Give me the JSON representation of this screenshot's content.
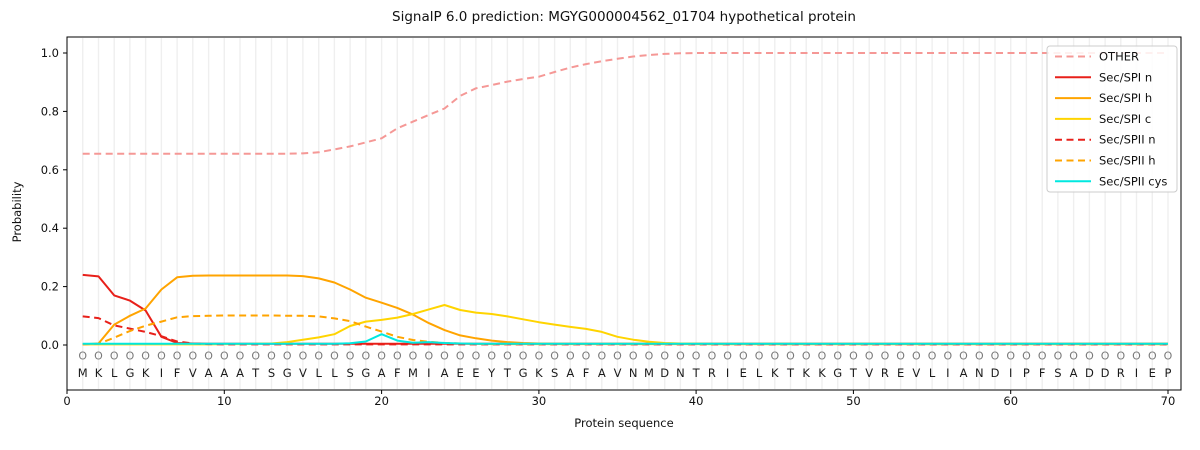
{
  "chart_data": {
    "type": "line",
    "title": "SignalP 6.0 prediction: MGYG000004562_01704 hypothetical protein",
    "xlabel": "Protein sequence",
    "ylabel": "Probability",
    "x_ticks": [
      0,
      10,
      20,
      30,
      40,
      50,
      60,
      70
    ],
    "y_ticks": [
      0.0,
      0.2,
      0.4,
      0.6,
      0.8,
      1.0
    ],
    "xlim": [
      0,
      70.8
    ],
    "ylim": [
      -0.15,
      1.05
    ],
    "grid": "vertical line at every residue position, light gray",
    "legend_position": "upper right",
    "sequence": "MKLGKIFVAAATSGVLLSGAFMIAEEYTGKSAFAVNMDNTRIELKTKKGTVREVLIANDIPFSADDRIEP",
    "position_labels": "OOOOOOOOOOOOOOOOOOOOOOOOOOOOOOOOOOOOOOOOOOOOOOOOOOOOOOOOOOOOOOOOOOOOOO",
    "colors": {
      "other": "#f59896",
      "red": "#e8201a",
      "orange": "#ffa400",
      "yellow": "#ffd400",
      "cyan": "#00e8e0",
      "grid": "#efefef",
      "frame": "#000000",
      "letter": "#1a1a1a",
      "position_label": "#7a7a7a"
    },
    "series": [
      {
        "name": "OTHER",
        "color": "#f59896",
        "dash": "dashed",
        "values": [
          0.655,
          0.655,
          0.655,
          0.655,
          0.655,
          0.655,
          0.655,
          0.655,
          0.655,
          0.655,
          0.655,
          0.655,
          0.655,
          0.655,
          0.656,
          0.66,
          0.67,
          0.68,
          0.694,
          0.708,
          0.742,
          0.765,
          0.788,
          0.81,
          0.853,
          0.879,
          0.89,
          0.902,
          0.911,
          0.919,
          0.935,
          0.95,
          0.962,
          0.972,
          0.98,
          0.988,
          0.993,
          0.997,
          0.999,
          1.0,
          1.0,
          1.0,
          1.0,
          1.0,
          1.0,
          1.0,
          1.0,
          1.0,
          1.0,
          1.0,
          1.0,
          1.0,
          1.0,
          1.0,
          1.0,
          1.0,
          1.0,
          1.0,
          1.0,
          1.0,
          1.0,
          1.0,
          1.0,
          1.0,
          1.0,
          1.0,
          1.0,
          1.0,
          1.0,
          1.0
        ]
      },
      {
        "name": "Sec/SPI n",
        "color": "#e8201a",
        "dash": "solid",
        "values": [
          0.24,
          0.235,
          0.17,
          0.152,
          0.118,
          0.028,
          0.007,
          0.005,
          0.004,
          0.004,
          0.004,
          0.004,
          0.004,
          0.004,
          0.004,
          0.004,
          0.004,
          0.004,
          0.004,
          0.004,
          0.004,
          0.004,
          0.004,
          0.004,
          0.004,
          0.004,
          0.004,
          0.004,
          0.004,
          0.004,
          0.004,
          0.004,
          0.004,
          0.004,
          0.004,
          0.004,
          0.004,
          0.004,
          0.004,
          0.004,
          0.004,
          0.004,
          0.004,
          0.004,
          0.004,
          0.004,
          0.004,
          0.004,
          0.004,
          0.004,
          0.004,
          0.004,
          0.004,
          0.004,
          0.004,
          0.004,
          0.004,
          0.004,
          0.004,
          0.004,
          0.004,
          0.004,
          0.004,
          0.004,
          0.004,
          0.004,
          0.004,
          0.004,
          0.004,
          0.004
        ]
      },
      {
        "name": "Sec/SPI h",
        "color": "#ffa400",
        "dash": "solid",
        "values": [
          0.002,
          0.005,
          0.07,
          0.1,
          0.125,
          0.19,
          0.232,
          0.237,
          0.238,
          0.238,
          0.238,
          0.238,
          0.238,
          0.238,
          0.236,
          0.228,
          0.214,
          0.19,
          0.162,
          0.145,
          0.127,
          0.104,
          0.075,
          0.051,
          0.033,
          0.023,
          0.015,
          0.01,
          0.007,
          0.005,
          0.004,
          0.004,
          0.004,
          0.004,
          0.004,
          0.004,
          0.004,
          0.004,
          0.004,
          0.004,
          0.004,
          0.004,
          0.004,
          0.004,
          0.004,
          0.004,
          0.004,
          0.004,
          0.004,
          0.004,
          0.004,
          0.004,
          0.004,
          0.004,
          0.004,
          0.004,
          0.004,
          0.004,
          0.004,
          0.004,
          0.004,
          0.004,
          0.004,
          0.004,
          0.004,
          0.004,
          0.004,
          0.004,
          0.004,
          0.004
        ]
      },
      {
        "name": "Sec/SPI c",
        "color": "#ffd400",
        "dash": "solid",
        "values": [
          0.002,
          0.002,
          0.002,
          0.002,
          0.002,
          0.002,
          0.002,
          0.002,
          0.002,
          0.003,
          0.003,
          0.004,
          0.005,
          0.01,
          0.018,
          0.026,
          0.037,
          0.065,
          0.08,
          0.086,
          0.094,
          0.106,
          0.122,
          0.137,
          0.12,
          0.111,
          0.106,
          0.098,
          0.088,
          0.078,
          0.07,
          0.062,
          0.055,
          0.045,
          0.028,
          0.018,
          0.011,
          0.007,
          0.005,
          0.004,
          0.003,
          0.003,
          0.003,
          0.003,
          0.003,
          0.003,
          0.003,
          0.003,
          0.003,
          0.003,
          0.003,
          0.003,
          0.003,
          0.003,
          0.003,
          0.003,
          0.003,
          0.003,
          0.003,
          0.003,
          0.003,
          0.003,
          0.003,
          0.003,
          0.003,
          0.003,
          0.003,
          0.003,
          0.003,
          0.003
        ]
      },
      {
        "name": "Sec/SPII n",
        "color": "#e8201a",
        "dash": "dashed",
        "values": [
          0.098,
          0.092,
          0.067,
          0.056,
          0.045,
          0.03,
          0.012,
          0.005,
          0.003,
          0.002,
          0.002,
          0.002,
          0.002,
          0.002,
          0.002,
          0.002,
          0.002,
          0.002,
          0.002,
          0.002,
          0.002,
          0.002,
          0.002,
          0.002,
          0.002,
          0.002,
          0.002,
          0.002,
          0.002,
          0.002,
          0.002,
          0.002,
          0.002,
          0.002,
          0.002,
          0.002,
          0.002,
          0.002,
          0.002,
          0.002,
          0.002,
          0.002,
          0.002,
          0.002,
          0.002,
          0.002,
          0.002,
          0.002,
          0.002,
          0.002,
          0.002,
          0.002,
          0.002,
          0.002,
          0.002,
          0.002,
          0.002,
          0.002,
          0.002,
          0.002,
          0.002,
          0.002,
          0.002,
          0.002,
          0.002,
          0.002,
          0.002,
          0.002,
          0.002,
          0.002
        ]
      },
      {
        "name": "Sec/SPII h",
        "color": "#ffa400",
        "dash": "dashed",
        "values": [
          0.002,
          0.004,
          0.025,
          0.048,
          0.066,
          0.08,
          0.095,
          0.099,
          0.1,
          0.101,
          0.101,
          0.101,
          0.101,
          0.1,
          0.1,
          0.098,
          0.091,
          0.082,
          0.063,
          0.046,
          0.028,
          0.017,
          0.011,
          0.007,
          0.005,
          0.004,
          0.003,
          0.003,
          0.003,
          0.003,
          0.003,
          0.003,
          0.003,
          0.003,
          0.003,
          0.003,
          0.003,
          0.003,
          0.003,
          0.003,
          0.003,
          0.003,
          0.003,
          0.003,
          0.003,
          0.003,
          0.003,
          0.003,
          0.003,
          0.003,
          0.003,
          0.003,
          0.003,
          0.003,
          0.003,
          0.003,
          0.003,
          0.003,
          0.003,
          0.003,
          0.003,
          0.003,
          0.003,
          0.003,
          0.003,
          0.003,
          0.003,
          0.003,
          0.003,
          0.003
        ]
      },
      {
        "name": "Sec/SPII cys",
        "color": "#00e8e0",
        "dash": "solid",
        "values": [
          0.004,
          0.004,
          0.004,
          0.004,
          0.004,
          0.004,
          0.004,
          0.004,
          0.004,
          0.004,
          0.004,
          0.004,
          0.004,
          0.004,
          0.004,
          0.004,
          0.004,
          0.006,
          0.012,
          0.037,
          0.015,
          0.008,
          0.01,
          0.007,
          0.005,
          0.004,
          0.004,
          0.004,
          0.004,
          0.004,
          0.004,
          0.004,
          0.004,
          0.004,
          0.004,
          0.004,
          0.004,
          0.004,
          0.004,
          0.004,
          0.004,
          0.004,
          0.004,
          0.004,
          0.004,
          0.004,
          0.004,
          0.004,
          0.004,
          0.004,
          0.004,
          0.004,
          0.004,
          0.004,
          0.004,
          0.004,
          0.004,
          0.004,
          0.004,
          0.004,
          0.004,
          0.004,
          0.004,
          0.004,
          0.004,
          0.004,
          0.004,
          0.004,
          0.004,
          0.004
        ]
      }
    ]
  }
}
